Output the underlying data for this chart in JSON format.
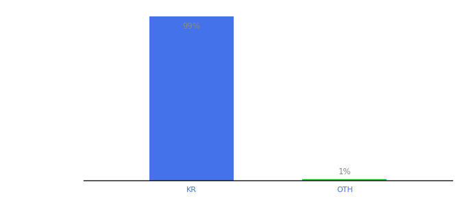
{
  "categories": [
    "KR",
    "OTH"
  ],
  "values": [
    99,
    1
  ],
  "bar_colors": [
    "#4472e8",
    "#2ecc40"
  ],
  "label_texts": [
    "99%",
    "1%"
  ],
  "ylim": [
    0,
    105
  ],
  "background_color": "#ffffff",
  "label_color": "#888888",
  "label_fontsize": 8.5,
  "tick_fontsize": 8,
  "tick_color": "#4472e8",
  "bar_width": 0.55,
  "figsize": [
    6.8,
    3.0
  ],
  "dpi": 100
}
